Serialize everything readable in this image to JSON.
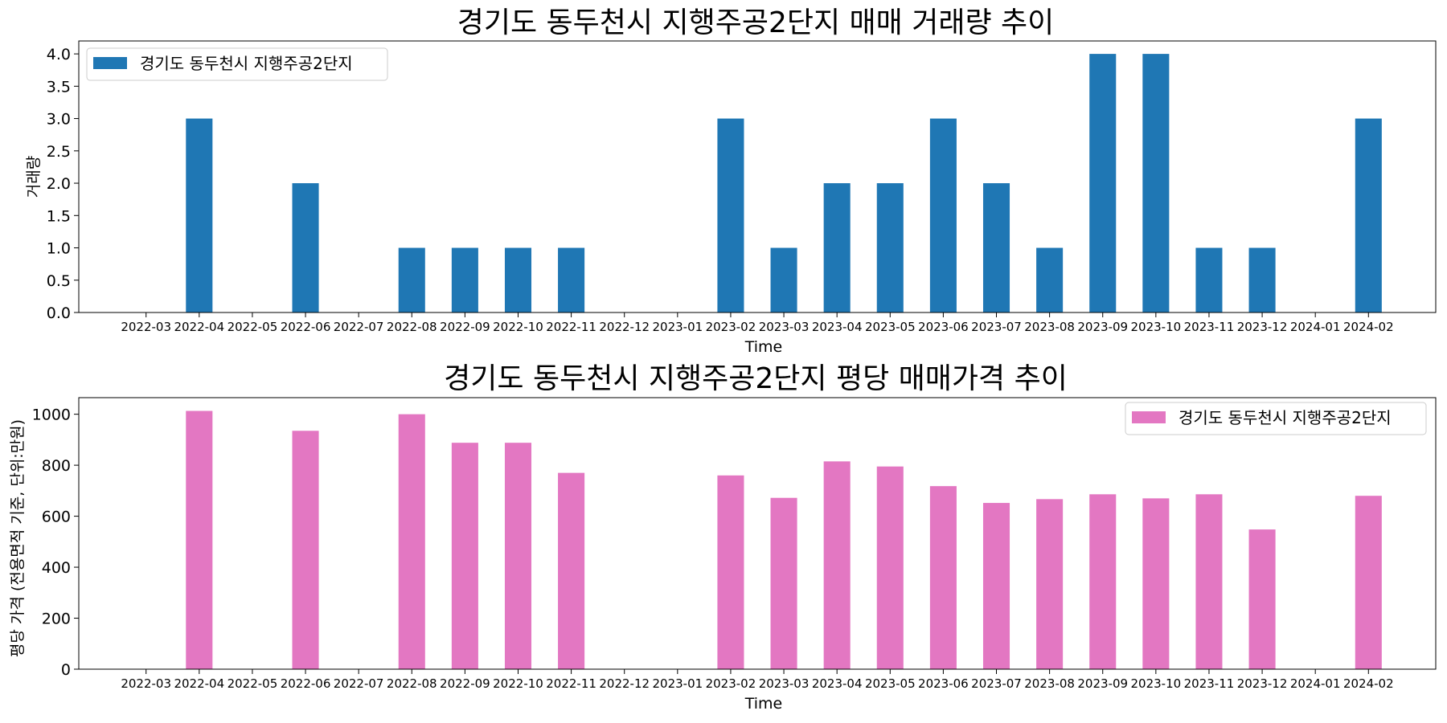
{
  "chart_data": [
    {
      "type": "bar",
      "title": "경기도 동두천시 지행주공2단지 매매 거래량 추이",
      "xlabel": "Time",
      "ylabel": "거래량",
      "ylim": [
        0,
        4.2
      ],
      "yticks": [
        "0.0",
        "0.5",
        "1.0",
        "1.5",
        "2.0",
        "2.5",
        "3.0",
        "3.5",
        "4.0"
      ],
      "grid": false,
      "legend_position": "top-left",
      "categories": [
        "2022-03",
        "2022-04",
        "2022-05",
        "2022-06",
        "2022-07",
        "2022-08",
        "2022-09",
        "2022-10",
        "2022-11",
        "2022-12",
        "2023-01",
        "2023-02",
        "2023-03",
        "2023-04",
        "2023-05",
        "2023-06",
        "2023-07",
        "2023-08",
        "2023-09",
        "2023-10",
        "2023-11",
        "2023-12",
        "2024-01",
        "2024-02"
      ],
      "series": [
        {
          "name": "경기도 동두천시 지행주공2단지",
          "color": "#1f77b4",
          "values": [
            0,
            3,
            0,
            2,
            0,
            1,
            1,
            1,
            1,
            0,
            0,
            3,
            1,
            2,
            2,
            3,
            2,
            1,
            4,
            4,
            1,
            1,
            0,
            3
          ]
        }
      ]
    },
    {
      "type": "bar",
      "title": "경기도 동두천시 지행주공2단지 평당 매매가격 추이",
      "xlabel": "Time",
      "ylabel": "평당 가격 (전용면적 기준, 단위:만원)",
      "ylim": [
        0,
        1065
      ],
      "yticks": [
        "0",
        "200",
        "400",
        "600",
        "800",
        "1000"
      ],
      "grid": false,
      "legend_position": "top-right",
      "categories": [
        "2022-03",
        "2022-04",
        "2022-05",
        "2022-06",
        "2022-07",
        "2022-08",
        "2022-09",
        "2022-10",
        "2022-11",
        "2022-12",
        "2023-01",
        "2023-02",
        "2023-03",
        "2023-04",
        "2023-05",
        "2023-06",
        "2023-07",
        "2023-08",
        "2023-09",
        "2023-10",
        "2023-11",
        "2023-12",
        "2024-01",
        "2024-02"
      ],
      "series": [
        {
          "name": "경기도 동두천시 지행주공2단지",
          "color": "#e377c2",
          "values": [
            0,
            1013,
            0,
            935,
            0,
            1000,
            888,
            888,
            770,
            0,
            0,
            760,
            672,
            815,
            795,
            718,
            652,
            667,
            686,
            670,
            686,
            548,
            0,
            680
          ]
        }
      ]
    }
  ]
}
